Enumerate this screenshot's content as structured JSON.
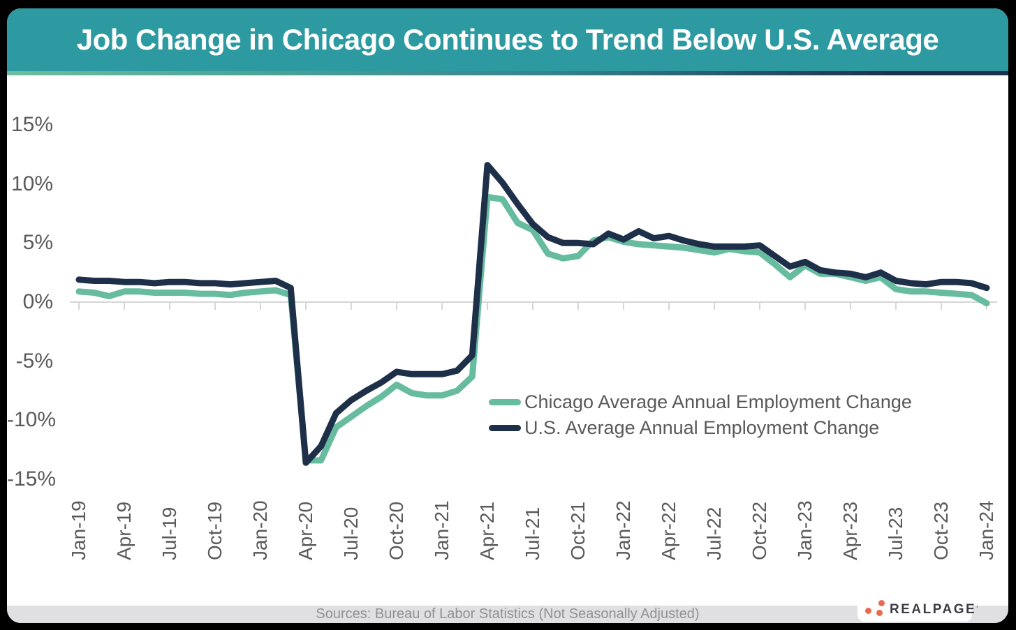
{
  "header": {
    "title": "Job Change in Chicago Continues to Trend Below U.S. Average",
    "bg_color": "#2D9AA2"
  },
  "chart_data": {
    "type": "line",
    "title": "Job Change in Chicago Continues to Trend Below U.S. Average",
    "frequency": "monthly",
    "x_start": "Jan-19",
    "x_end": "Jan-24",
    "x_tick_labels": [
      "Jan-19",
      "Apr-19",
      "Jul-19",
      "Oct-19",
      "Jan-20",
      "Apr-20",
      "Jul-20",
      "Oct-20",
      "Jan-21",
      "Apr-21",
      "Jul-21",
      "Oct-21",
      "Jan-22",
      "Apr-22",
      "Jul-22",
      "Oct-22",
      "Jan-23",
      "Apr-23",
      "Jul-23",
      "Oct-23",
      "Jan-24"
    ],
    "y_ticks": [
      15,
      10,
      5,
      0,
      -5,
      -10,
      -15
    ],
    "y_tick_labels": [
      "15%",
      "10%",
      "5%",
      "0%",
      "-5%",
      "-10%",
      "-15%"
    ],
    "ylim": [
      -15,
      15
    ],
    "grid": false,
    "legend_position": "inside-center-right",
    "axis_color": "#D6D6D6",
    "series": [
      {
        "name": "Chicago Average Annual Employment Change",
        "color": "#67BC9F",
        "values": [
          0.9,
          0.8,
          0.5,
          0.9,
          0.9,
          0.8,
          0.8,
          0.8,
          0.7,
          0.7,
          0.6,
          0.8,
          0.9,
          1.0,
          0.6,
          -13.4,
          -13.4,
          -10.6,
          -9.7,
          -8.8,
          -8.0,
          -7.0,
          -7.7,
          -7.9,
          -7.9,
          -7.5,
          -6.3,
          8.9,
          8.7,
          6.7,
          6.1,
          4.1,
          3.7,
          3.9,
          5.2,
          5.5,
          5.1,
          4.9,
          4.8,
          4.7,
          4.6,
          4.4,
          4.2,
          4.5,
          4.3,
          4.2,
          3.2,
          2.1,
          3.1,
          2.4,
          2.4,
          2.1,
          1.8,
          2.1,
          1.1,
          0.9,
          0.9,
          0.8,
          0.7,
          0.6,
          -0.1
        ]
      },
      {
        "name": "U.S. Average Annual Employment Change",
        "color": "#1E3049",
        "values": [
          1.9,
          1.8,
          1.8,
          1.7,
          1.7,
          1.6,
          1.7,
          1.7,
          1.6,
          1.6,
          1.5,
          1.6,
          1.7,
          1.8,
          1.2,
          -13.6,
          -12.2,
          -9.4,
          -8.3,
          -7.5,
          -6.8,
          -5.9,
          -6.1,
          -6.1,
          -6.1,
          -5.8,
          -4.5,
          11.6,
          10.1,
          8.3,
          6.6,
          5.5,
          5.0,
          5.0,
          4.9,
          5.8,
          5.3,
          6.0,
          5.4,
          5.6,
          5.2,
          4.9,
          4.7,
          4.7,
          4.7,
          4.8,
          3.9,
          3.0,
          3.4,
          2.7,
          2.5,
          2.4,
          2.1,
          2.5,
          1.8,
          1.6,
          1.5,
          1.7,
          1.7,
          1.6,
          1.2
        ]
      }
    ]
  },
  "footer": {
    "source_text": "Sources: Bureau of Labor Statistics (Not Seasonally Adjusted)"
  },
  "logo": {
    "text": "REALPAGE",
    "mark": "’",
    "dot_color": "#E96A50"
  }
}
